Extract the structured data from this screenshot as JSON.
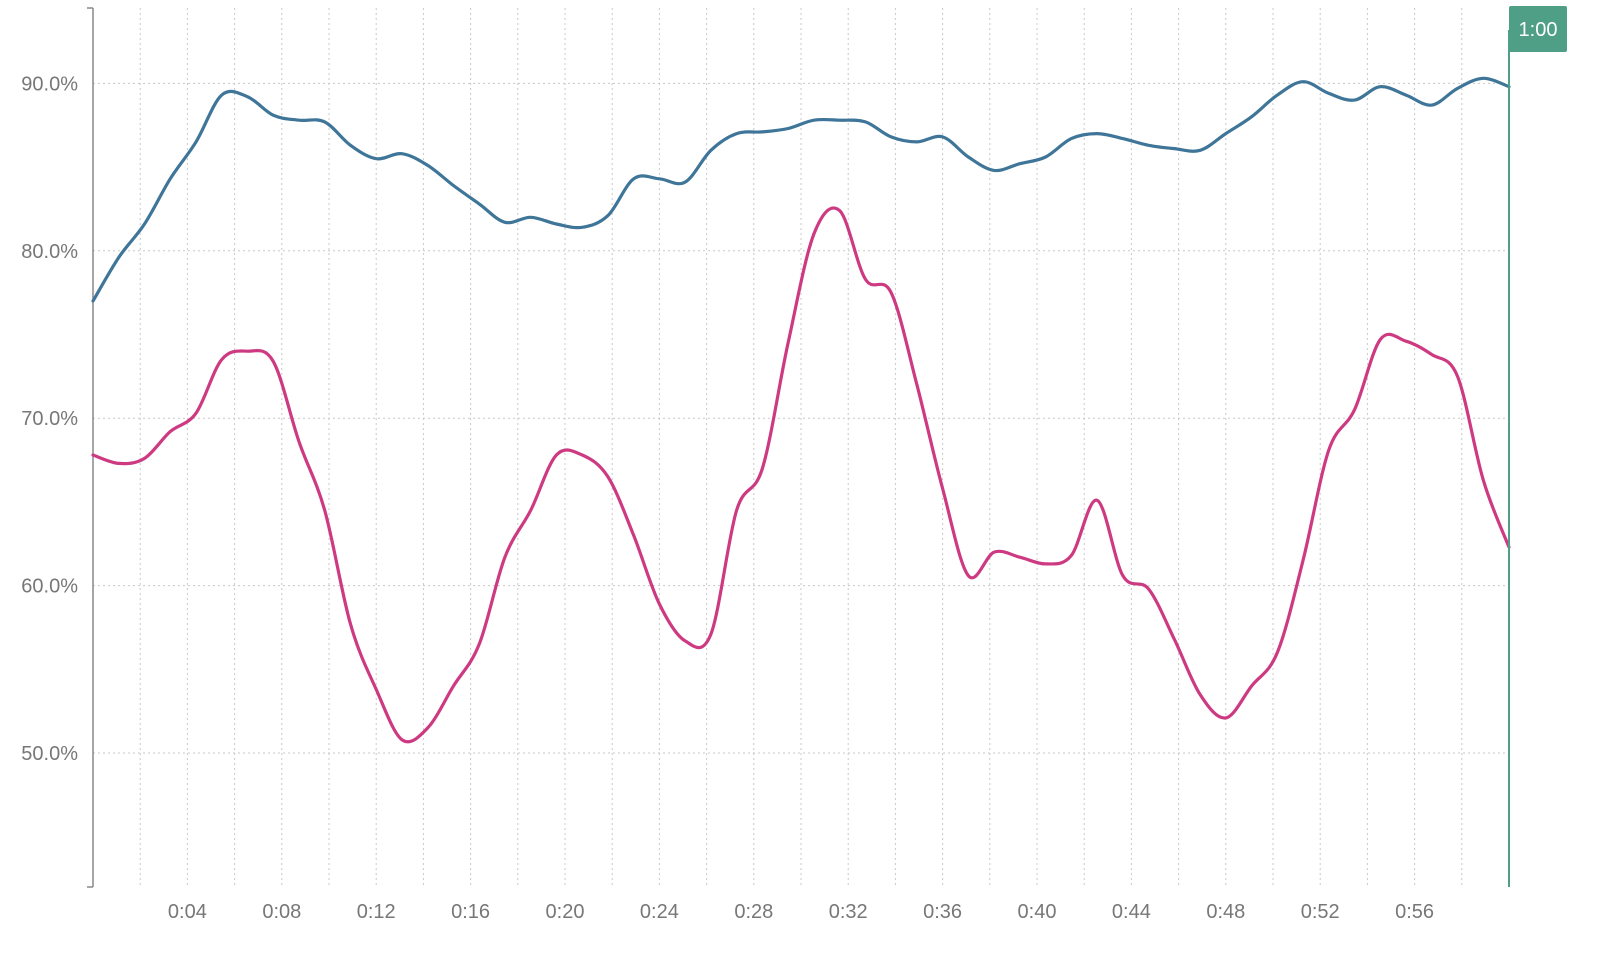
{
  "chart_data": {
    "type": "line",
    "title": "",
    "xlabel": "",
    "ylabel": "",
    "x_ticks": [
      "0:04",
      "0:08",
      "0:12",
      "0:16",
      "0:20",
      "0:24",
      "0:28",
      "0:32",
      "0:36",
      "0:40",
      "0:44",
      "0:48",
      "0:52",
      "0:56"
    ],
    "y_ticks": [
      "50.0%",
      "60.0%",
      "70.0%",
      "80.0%",
      "90.0%"
    ],
    "xlim": [
      0,
      60
    ],
    "ylim": [
      42.0,
      94.5
    ],
    "grid": true,
    "legend": "none",
    "marker": {
      "label": "1:00",
      "x": 60
    },
    "colors": {
      "series_1": "#3e7598",
      "series_2": "#cd3a82",
      "marker": "#4f9f86",
      "grid": "#c8c8c8",
      "axis": "#888888",
      "tick_text": "#777777"
    },
    "series": [
      {
        "color": "#3e7598",
        "x": [
          0,
          1,
          2,
          3,
          4,
          5,
          6,
          7,
          8,
          9,
          10,
          11,
          12,
          13,
          14,
          15,
          16,
          17,
          18,
          19,
          20,
          21,
          22,
          23,
          24,
          25,
          26,
          27,
          28,
          29,
          30,
          31,
          32,
          33,
          34,
          35,
          36,
          37,
          38,
          39,
          40,
          41,
          42,
          43,
          44,
          45,
          46,
          47,
          48,
          49,
          50,
          51,
          52,
          53,
          54,
          55
        ],
        "values": [
          77.0,
          79.6,
          81.6,
          84.3,
          86.5,
          89.3,
          89.2,
          88.1,
          87.8,
          87.7,
          86.3,
          85.5,
          85.8,
          85.1,
          83.9,
          82.8,
          81.7,
          82.0,
          81.6,
          81.4,
          82.1,
          84.3,
          84.3,
          84.1,
          86.0,
          87.0,
          87.1,
          87.3,
          87.8,
          87.8,
          87.7,
          86.8,
          86.5,
          86.8,
          85.6,
          84.8,
          85.2,
          85.6,
          86.7,
          87.0,
          86.7,
          86.3,
          86.1,
          86.0,
          87.0,
          88.0,
          89.3,
          90.1,
          89.4,
          89.0,
          89.8,
          89.3,
          88.7,
          89.7,
          90.3,
          89.8
        ]
      },
      {
        "color": "#cd3a82",
        "x": [
          0,
          1,
          2,
          3,
          4,
          5,
          6,
          7,
          8,
          9,
          10,
          11,
          12,
          13,
          14,
          15,
          16,
          17,
          18,
          19,
          20,
          21,
          22,
          23,
          24,
          25,
          26,
          27,
          28,
          29,
          30,
          31,
          32,
          33,
          34,
          35,
          36,
          37,
          38,
          39,
          40,
          41,
          42,
          43,
          44,
          45,
          46,
          47,
          48,
          49,
          50,
          51,
          52,
          53,
          54,
          55
        ],
        "values": [
          67.8,
          67.3,
          67.6,
          69.2,
          70.3,
          73.5,
          74.0,
          73.4,
          68.6,
          64.5,
          57.7,
          53.8,
          50.8,
          51.5,
          54.0,
          56.5,
          61.7,
          64.5,
          67.8,
          67.8,
          66.5,
          63.0,
          58.9,
          56.7,
          57.1,
          64.5,
          67.0,
          74.5,
          81.0,
          82.4,
          78.3,
          77.5,
          72.0,
          65.8,
          60.6,
          62.0,
          61.7,
          61.3,
          61.8,
          65.1,
          60.6,
          59.8,
          56.8,
          53.5,
          52.1,
          54.0,
          56.0,
          61.5,
          68.1,
          70.5,
          74.7,
          74.6,
          73.8,
          72.5,
          66.3,
          62.3
        ]
      }
    ]
  }
}
